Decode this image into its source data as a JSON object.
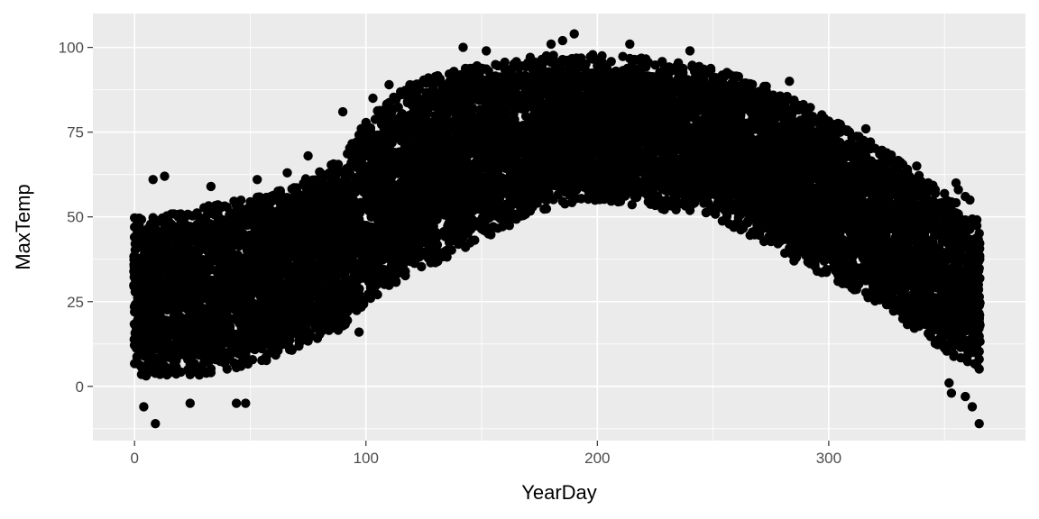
{
  "chart_data": {
    "type": "scatter",
    "title": "",
    "xlabel": "YearDay",
    "ylabel": "MaxTemp",
    "xlim": [
      -18,
      385
    ],
    "ylim": [
      -16,
      110
    ],
    "x_ticks": [
      0,
      100,
      200,
      300
    ],
    "x_tick_labels": [
      "0",
      "100",
      "200",
      "300"
    ],
    "y_ticks": [
      0,
      25,
      50,
      75,
      100
    ],
    "y_tick_labels": [
      "0",
      "25",
      "50",
      "75",
      "100"
    ],
    "grid": true,
    "legend": "none",
    "point_color": "#000000",
    "panel_color": "#ebebeb",
    "band": {
      "description_x": [
        0,
        30,
        60,
        90,
        100,
        120,
        150,
        180,
        200,
        220,
        250,
        270,
        300,
        330,
        350,
        365
      ],
      "lower": [
        8,
        8,
        13,
        22,
        29,
        38,
        48,
        58,
        60,
        58,
        55,
        48,
        37,
        25,
        15,
        10
      ],
      "upper": [
        45,
        48,
        52,
        62,
        74,
        85,
        90,
        93,
        93,
        92,
        89,
        85,
        75,
        62,
        52,
        44
      ]
    },
    "outliers": [
      {
        "x": 9,
        "y": -11
      },
      {
        "x": 4,
        "y": -6
      },
      {
        "x": 13,
        "y": 62
      },
      {
        "x": 8,
        "y": 61
      },
      {
        "x": 33,
        "y": 59
      },
      {
        "x": 44,
        "y": -5
      },
      {
        "x": 48,
        "y": -5
      },
      {
        "x": 24,
        "y": -5
      },
      {
        "x": 53,
        "y": 61
      },
      {
        "x": 66,
        "y": 63
      },
      {
        "x": 75,
        "y": 68
      },
      {
        "x": 90,
        "y": 81
      },
      {
        "x": 97,
        "y": 16
      },
      {
        "x": 86,
        "y": 19
      },
      {
        "x": 102,
        "y": 26
      },
      {
        "x": 103,
        "y": 85
      },
      {
        "x": 110,
        "y": 89
      },
      {
        "x": 118,
        "y": 38
      },
      {
        "x": 127,
        "y": 91
      },
      {
        "x": 142,
        "y": 100
      },
      {
        "x": 152,
        "y": 99
      },
      {
        "x": 185,
        "y": 102
      },
      {
        "x": 190,
        "y": 104
      },
      {
        "x": 180,
        "y": 101
      },
      {
        "x": 214,
        "y": 101
      },
      {
        "x": 240,
        "y": 99
      },
      {
        "x": 210,
        "y": 57
      },
      {
        "x": 230,
        "y": 55
      },
      {
        "x": 260,
        "y": 48
      },
      {
        "x": 270,
        "y": 45
      },
      {
        "x": 285,
        "y": 37
      },
      {
        "x": 283,
        "y": 90
      },
      {
        "x": 296,
        "y": 79
      },
      {
        "x": 305,
        "y": 35
      },
      {
        "x": 312,
        "y": 71
      },
      {
        "x": 316,
        "y": 76
      },
      {
        "x": 320,
        "y": 30
      },
      {
        "x": 326,
        "y": 66
      },
      {
        "x": 334,
        "y": 64
      },
      {
        "x": 338,
        "y": 65
      },
      {
        "x": 350,
        "y": 50
      },
      {
        "x": 352,
        "y": 1
      },
      {
        "x": 353,
        "y": -2
      },
      {
        "x": 356,
        "y": 58
      },
      {
        "x": 359,
        "y": 56
      },
      {
        "x": 361,
        "y": 55
      },
      {
        "x": 362,
        "y": -6
      },
      {
        "x": 365,
        "y": -11
      },
      {
        "x": 355,
        "y": 60
      },
      {
        "x": 359,
        "y": -3
      }
    ]
  }
}
